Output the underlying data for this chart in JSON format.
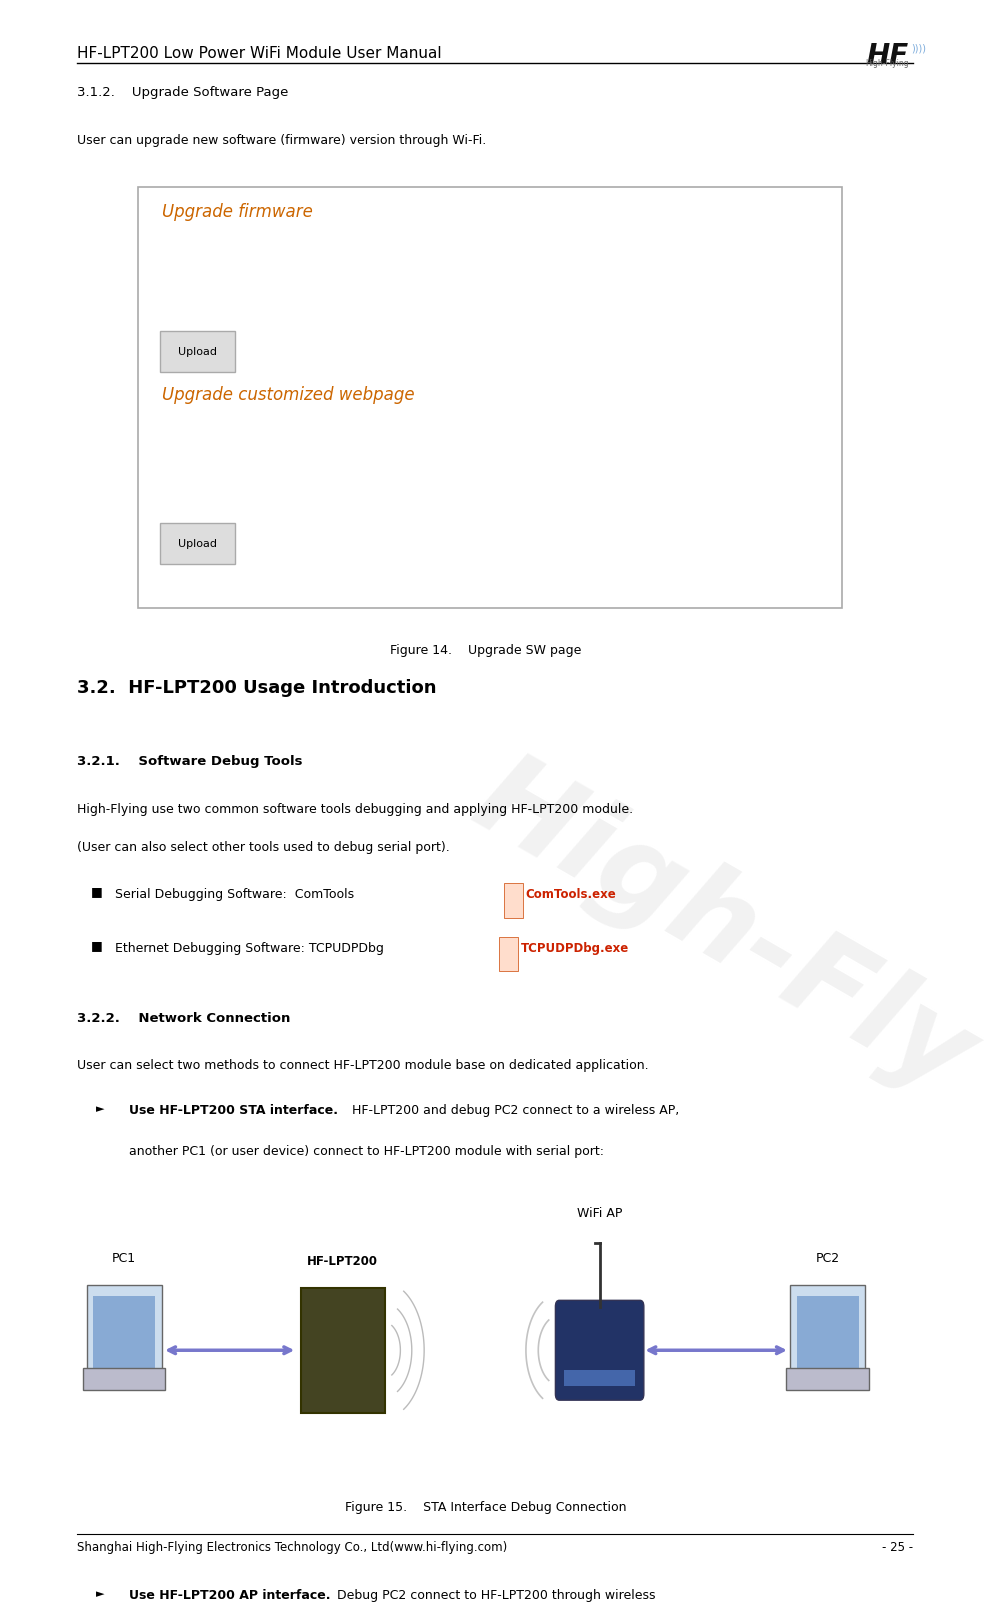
{
  "page_width": 9.51,
  "page_height": 15.85,
  "bg_color": "#ffffff",
  "header_title": "HF-LPT200 Low Power WiFi Module User Manual",
  "header_title_fontsize": 11,
  "footer_text": "Shanghai High-Flying Electronics Technology Co., Ltd(www.hi-flying.com)",
  "footer_page": "- 25 -",
  "section_312_title": "3.1.2.    Upgrade Software Page",
  "section_312_body": "User can upgrade new software (firmware) version through Wi-Fi.",
  "figure14_caption": "Figure 14.    Upgrade SW page",
  "section_32_title": "3.2.  HF-LPT200 Usage Introduction",
  "section_321_title": "3.2.1.    Software Debug Tools",
  "section_321_body1": "High-Flying use two common software tools debugging and applying HF-LPT200 module.",
  "section_321_body2": "(User can also select other tools used to debug serial port).",
  "bullet1_text": "Serial Debugging Software:  ComTools",
  "bullet2_text": "Ethernet Debugging Software: TCPUDPDbg",
  "comtools_label": "ComTools.exe",
  "tcpudp_label": "TCPUDPDbg.exe",
  "section_322_title": "3.2.2.    Network Connection",
  "section_322_body": "User can select two methods to connect HF-LPT200 module base on dedicated application.",
  "bullet3_bold": "Use HF-LPT200 STA interface.",
  "bullet3_line1": " HF-LPT200 and debug PC2 connect to a wireless AP,",
  "bullet3_line2": "another PC1 (or user device) connect to HF-LPT200 module with serial port:",
  "figure15_caption": "Figure 15.    STA Interface Debug Connection",
  "bullet4_bold": "Use HF-LPT200 AP interface.",
  "bullet4_rest": " Debug PC2 connect to HF-LPT200 through wireless",
  "text_color": "#000000",
  "header_color": "#000000",
  "upgrade_fw_color": "#cc6600",
  "box_border_color": "#aaaaaa",
  "box_bg_color": "#ffffff",
  "button_border": "#aaaaaa",
  "button_bg": "#dddddd",
  "watermark_color": "#cccccc",
  "comtools_color": "#cc2200",
  "tcpudp_color": "#cc2200",
  "arrow_color": "#7777cc",
  "pc1_label": "PC1",
  "hflpt200_label": "HF-LPT200",
  "wifiap_label": "WiFi AP",
  "pc2_label": "PC2"
}
